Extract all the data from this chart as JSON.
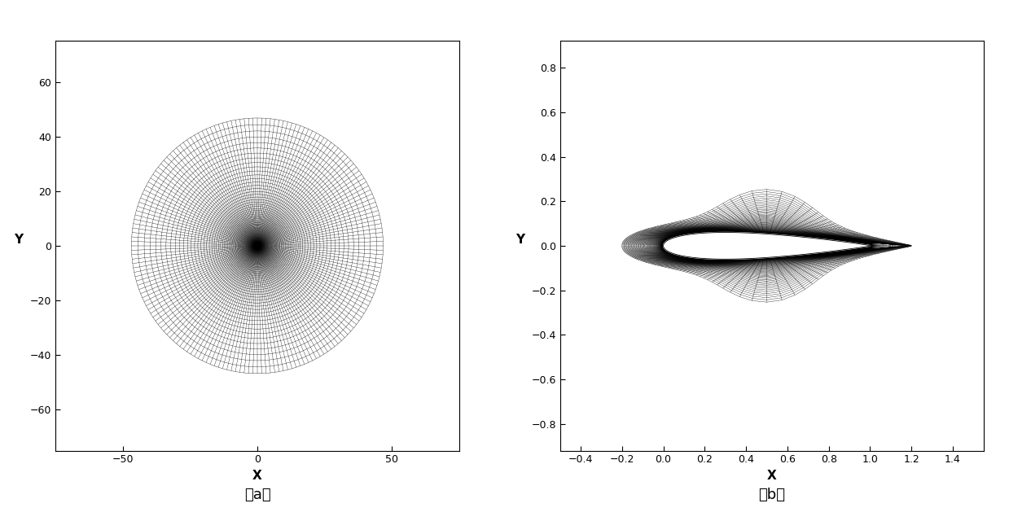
{
  "fig_width": 12.39,
  "fig_height": 6.29,
  "dpi": 100,
  "background_color": "#ffffff",
  "line_color": "#000000",
  "panel_a": {
    "xlabel": "X",
    "ylabel": "Y",
    "label": "（a）",
    "xlim": [
      -75,
      75
    ],
    "ylim": [
      -75,
      75
    ],
    "xticks": [
      -50,
      0,
      50
    ],
    "yticks": [
      -60,
      -40,
      -20,
      0,
      20,
      40,
      60
    ],
    "n_radial": 120,
    "n_angular": 180,
    "r_min": 0.08,
    "r_max": 72.0,
    "growth_rate": 1.055,
    "line_width": 0.25
  },
  "panel_b": {
    "xlabel": "X",
    "ylabel": "Y",
    "label": "（b）",
    "xlim": [
      -0.5,
      1.55
    ],
    "ylim": [
      -0.92,
      0.92
    ],
    "xticks": [
      -0.4,
      -0.2,
      0.0,
      0.2,
      0.4,
      0.6,
      0.8,
      1.0,
      1.2,
      1.4
    ],
    "yticks": [
      -0.8,
      -0.6,
      -0.4,
      -0.2,
      0.0,
      0.2,
      0.4,
      0.6,
      0.8
    ],
    "n_radial": 100,
    "n_angular": 200,
    "r_min": 0.001,
    "r_max": 1.55,
    "growth_rate": 1.055,
    "airfoil_chord": 1.0,
    "airfoil_le_x": 0.0,
    "line_width": 0.25
  }
}
